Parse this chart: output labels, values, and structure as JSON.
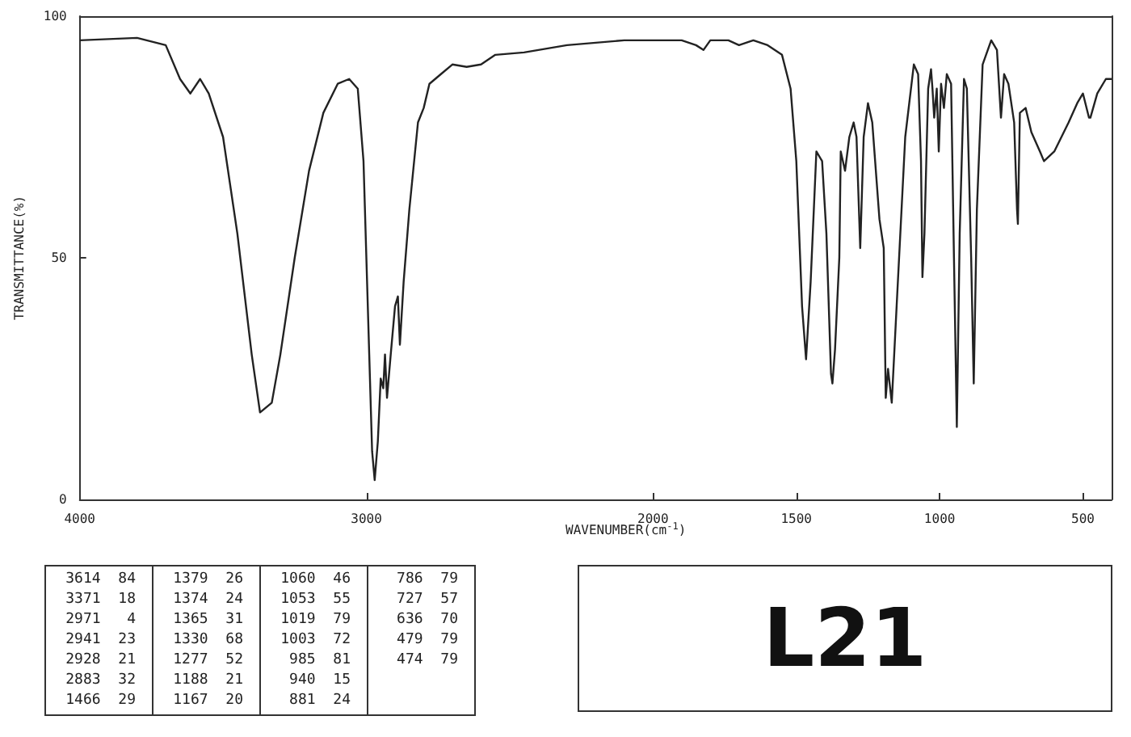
{
  "chart_data": {
    "type": "line",
    "ylabel": "TRANSMITTANCE(%)",
    "xlabel": "WAVENUMBER(cm$^{-1}$)",
    "xlim": [
      4000,
      400
    ],
    "xticks": [
      4000,
      3000,
      2000,
      1500,
      1000,
      500
    ],
    "ylim": [
      0,
      100
    ],
    "yticks": [
      0,
      50,
      100
    ],
    "marker": "none",
    "series": [
      {
        "color": "#222222",
        "x": [
          4000,
          3800,
          3700,
          3650,
          3614,
          3580,
          3550,
          3500,
          3450,
          3400,
          3371,
          3330,
          3300,
          3250,
          3200,
          3150,
          3100,
          3060,
          3030,
          3010,
          2990,
          2980,
          2971,
          2960,
          2950,
          2941,
          2935,
          2928,
          2915,
          2900,
          2890,
          2883,
          2870,
          2850,
          2820,
          2800,
          2780,
          2740,
          2700,
          2650,
          2600,
          2550,
          2450,
          2300,
          2100,
          2000,
          1900,
          1850,
          1824,
          1800,
          1737,
          1700,
          1650,
          1600,
          1550,
          1520,
          1500,
          1480,
          1466,
          1450,
          1430,
          1410,
          1395,
          1379,
          1374,
          1365,
          1350,
          1345,
          1330,
          1315,
          1300,
          1290,
          1277,
          1265,
          1250,
          1235,
          1210,
          1195,
          1188,
          1180,
          1167,
          1150,
          1120,
          1090,
          1075,
          1065,
          1060,
          1053,
          1040,
          1030,
          1025,
          1019,
          1010,
          1003,
          995,
          985,
          975,
          960,
          950,
          940,
          930,
          915,
          905,
          890,
          881,
          870,
          850,
          820,
          800,
          786,
          775,
          760,
          740,
          730,
          727,
          720,
          700,
          680,
          650,
          636,
          600,
          550,
          520,
          500,
          479,
          474,
          450,
          420,
          400
        ],
        "values": [
          95,
          95.5,
          94,
          87,
          84,
          87,
          84,
          75,
          55,
          30,
          18,
          20,
          30,
          50,
          68,
          80,
          86,
          87,
          85,
          70,
          30,
          10,
          4,
          12,
          25,
          23,
          30,
          21,
          30,
          40,
          42,
          32,
          45,
          60,
          78,
          81,
          86,
          88,
          90,
          89.5,
          90,
          92,
          92.5,
          94,
          95,
          95,
          95,
          94,
          93,
          95,
          95,
          94,
          95,
          94,
          92,
          85,
          70,
          40,
          29,
          45,
          72,
          70,
          55,
          26,
          24,
          31,
          50,
          72,
          68,
          75,
          78,
          75,
          52,
          75,
          82,
          78,
          58,
          52,
          21,
          27,
          20,
          40,
          75,
          90,
          88,
          70,
          46,
          55,
          85,
          89,
          85,
          79,
          85,
          72,
          86,
          81,
          88,
          86,
          50,
          15,
          55,
          87,
          85,
          50,
          24,
          60,
          90,
          95,
          93,
          79,
          88,
          86,
          78,
          60,
          57,
          80,
          81,
          76,
          72,
          70,
          72,
          78,
          82,
          84,
          79,
          79,
          84,
          87,
          87
        ]
      }
    ],
    "annotations": [
      "3614  84",
      "3371  18",
      "2971   4",
      "2941  23",
      "2928  21",
      "2883  32",
      "1466  29",
      "1379  26",
      "1374  24",
      "1365  31",
      "1330  68",
      "1277  52",
      "1188  21",
      "1167  20",
      "1060  46",
      "1053  55",
      "1019  79",
      "1003  72",
      " 985  81",
      " 940  15",
      " 881  24",
      " 786  79",
      " 727  57",
      " 636  70",
      " 479  79",
      " 474  79",
      "L21"
    ]
  }
}
